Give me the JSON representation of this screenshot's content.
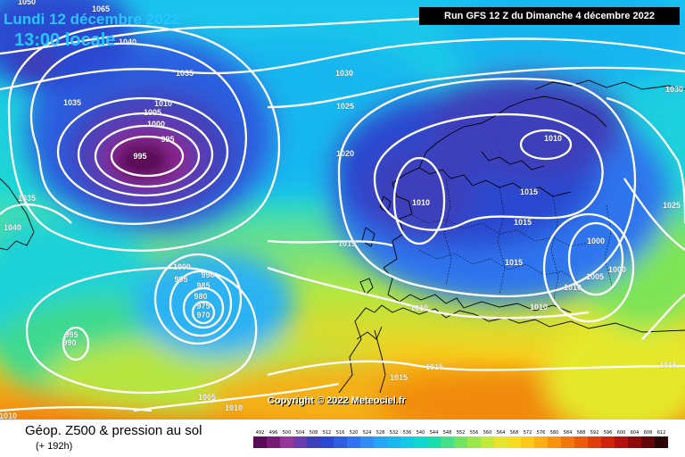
{
  "header": {
    "date": "Lundi 12 décembre 2022",
    "time": "13:00 locale",
    "run": "Run GFS 12 Z du Dimanche 4 décembre 2022"
  },
  "copyright": "Copyright © 2022 Meteociel.fr",
  "footer": {
    "title": "Géop. Z500 & pression au sol",
    "subtitle": "(+ 192h)"
  },
  "pressure_labels": [
    "1065",
    "1040",
    "1050",
    "1035",
    "1030",
    "1010",
    "1005",
    "1000",
    "995",
    "995",
    "1025",
    "1030",
    "1020",
    "1010",
    "1010",
    "1015",
    "1015",
    "1035",
    "1040",
    "1015",
    "1015",
    "1000",
    "1000",
    "990",
    "995",
    "985",
    "980",
    "975",
    "970",
    "1010",
    "995",
    "990",
    "1005",
    "1010",
    "1015",
    "1015",
    "1010",
    "1010",
    "1000",
    "1005",
    "1010",
    "1015",
    "1025",
    "1030",
    "1010"
  ],
  "legend": {
    "levels": [
      "492",
      "496",
      "500",
      "504",
      "508",
      "512",
      "516",
      "520",
      "524",
      "528",
      "532",
      "536",
      "540",
      "544",
      "548",
      "552",
      "556",
      "560",
      "564",
      "568",
      "572",
      "576",
      "580",
      "584",
      "588",
      "592",
      "596",
      "600",
      "604",
      "608",
      "612"
    ],
    "colors": [
      "#5a0a57",
      "#7a1a77",
      "#96359c",
      "#6a3cae",
      "#3d3fba",
      "#2b49d0",
      "#2c5ee0",
      "#2f74ee",
      "#2f8df5",
      "#22a6f5",
      "#18b8ef",
      "#14c9e6",
      "#10d7d0",
      "#19dcaf",
      "#44e08a",
      "#72e462",
      "#9be64a",
      "#c2e83a",
      "#e5e72c",
      "#f7dc20",
      "#fcc819",
      "#fcae14",
      "#f8920f",
      "#f2760c",
      "#ea5a0a",
      "#df3e0a",
      "#cf230c",
      "#b4110e",
      "#8e0a0c",
      "#60060a",
      "#2a0306"
    ]
  },
  "colors": {
    "isobar": "#ffffff",
    "low_core": "#7a1a77",
    "ocean_trough": "#2c5ee0",
    "warm_south": "#f8920f"
  }
}
